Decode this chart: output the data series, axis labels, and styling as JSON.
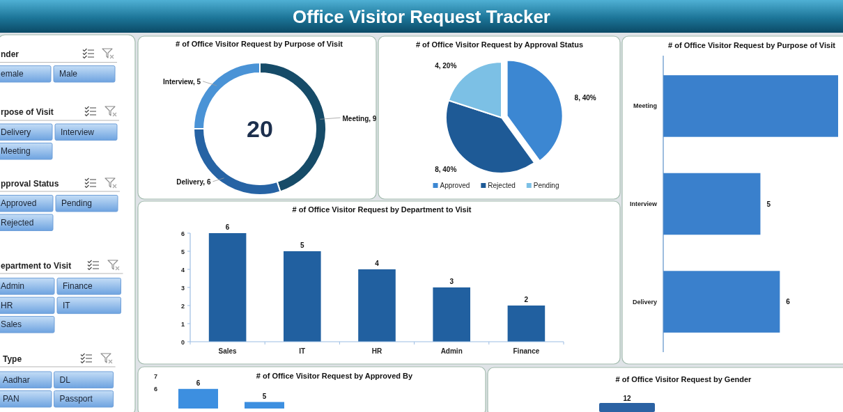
{
  "chart_data": [
    {
      "type": "other",
      "title": "Office Visitor Request Tracker"
    },
    {
      "type": "other",
      "title": "nder",
      "annotations": [
        "emale",
        "Male"
      ]
    },
    {
      "type": "other",
      "title": "rpose of Visit",
      "annotations": [
        "Delivery",
        "Interview",
        "Meeting"
      ]
    },
    {
      "type": "other",
      "title": "pproval Status",
      "annotations": [
        "Approved",
        "Pending",
        "Rejected"
      ]
    },
    {
      "type": "other",
      "title": "epartment to Visit",
      "annotations": [
        "Admin",
        "Finance",
        "HR",
        "IT",
        "Sales"
      ]
    },
    {
      "type": "other",
      "title": "Type",
      "annotations": [
        "Aadhar",
        "DL",
        "PAN",
        "Passport"
      ]
    },
    {
      "type": "donut",
      "title": "# of Office Visitor Request by Purpose of Visit",
      "values": [
        9,
        6,
        5
      ],
      "colors": [
        "#164b68",
        "#2663a4",
        "#4a93d6"
      ],
      "value_labels": [
        "Meeting, 9",
        "Delivery, 6",
        "Interview, 5"
      ],
      "annotations": [
        "20"
      ]
    },
    {
      "type": "pie",
      "title": "# of Office Visitor Request by Approval Status",
      "categories": [
        "Approved",
        "Rejected",
        "Pending"
      ],
      "values": [
        8,
        8,
        4
      ],
      "colors": [
        "#3c87d2",
        "#1e5a96",
        "#7cc0e5"
      ],
      "value_labels": [
        "8, 40%",
        "8, 40%",
        "4, 20%"
      ],
      "legend": "bottom"
    },
    {
      "type": "bar",
      "orientation": "horizontal",
      "title": "# of Office Visitor Request by Purpose of Visit",
      "categories": [
        "Meeting",
        "Interview",
        "Delivery"
      ],
      "values": [
        9,
        5,
        6
      ],
      "color": "#3a80cc",
      "value_labels": [
        null,
        "5",
        "6"
      ]
    },
    {
      "type": "bar",
      "title": "# of Office Visitor Request by Department to Visit",
      "categories": [
        "Sales",
        "IT",
        "HR",
        "Admin",
        "Finance"
      ],
      "values": [
        6,
        5,
        4,
        3,
        2
      ],
      "color": "#2160a0",
      "ylim": [
        0,
        6
      ],
      "yticks": [
        0,
        1,
        2,
        3,
        4,
        5,
        6
      ],
      "data_labels": true
    },
    {
      "type": "bar",
      "title": "# of Office Visitor Request by Approved By",
      "categories": [
        null,
        null
      ],
      "values": [
        6,
        5
      ],
      "color": "#3d8fe0",
      "ylim": [
        4.5,
        7
      ],
      "yticks": [
        6,
        7
      ],
      "data_labels": true
    },
    {
      "type": "other",
      "title": "# of Office Visitor Request by Gender",
      "annotations": [
        "12"
      ]
    }
  ]
}
